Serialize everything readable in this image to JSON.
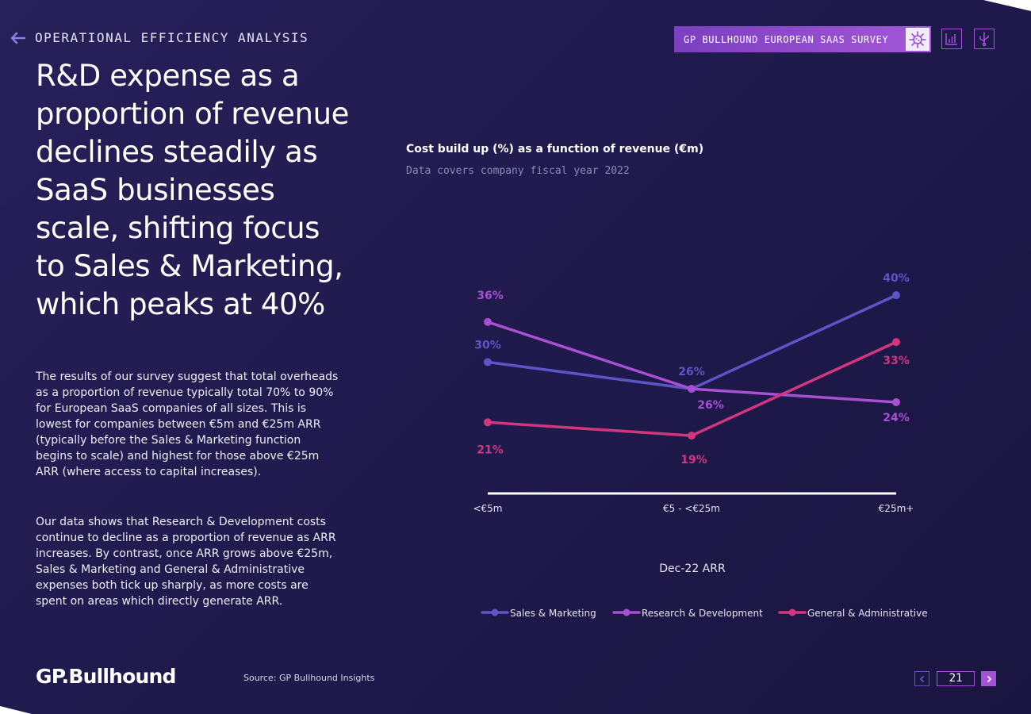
{
  "header": {
    "section_title": "OPERATIONAL EFFICIENCY ANALYSIS",
    "survey_label": "GP BULLHOUND EUROPEAN SAAS SURVEY"
  },
  "headline": "R&D expense as a proportion of revenue declines steadily as SaaS businesses scale, shifting focus to Sales & Marketing, which peaks at 40%",
  "body": {
    "paragraph1": "The results of our survey suggest that total overheads as a proportion of revenue typically total 70% to 90% for European SaaS companies of all sizes. This is lowest for companies between €5m and €25m ARR (typically before the Sales & Marketing function begins to scale) and highest for those above €25m ARR (where access to capital increases).",
    "paragraph2": "Our data shows that Research & Development costs continue to decline as a proportion of revenue as ARR increases. By contrast, once ARR grows above €25m, Sales & Marketing and General & Administrative expenses both tick up sharply, as more costs are spent on areas which directly generate ARR."
  },
  "chart_data": {
    "type": "line",
    "title": "Cost build up (%) as a function of revenue (€m)",
    "subtitle": "Data covers company fiscal year 2022",
    "categories": [
      "<€5m",
      "€5 - <€25m",
      "€25m+"
    ],
    "xlabel": "Dec-22 ARR",
    "ylabel": "",
    "ylim": [
      10,
      45
    ],
    "grid": false,
    "legend_position": "bottom",
    "series": [
      {
        "name": "Sales & Marketing",
        "values": [
          30,
          26,
          40
        ],
        "labels": [
          "30%",
          "26%",
          "40%"
        ],
        "color": "#5d54c8"
      },
      {
        "name": "Research & Development",
        "values": [
          36,
          26,
          24
        ],
        "labels": [
          "36%",
          "26%",
          "24%"
        ],
        "color": "#a94fd3"
      },
      {
        "name": "General & Administrative",
        "values": [
          21,
          19,
          33
        ],
        "labels": [
          "21%",
          "19%",
          "33%"
        ],
        "color": "#d0377f"
      }
    ]
  },
  "footer": {
    "logo_text": "GP.Bullhound",
    "source": "Source: GP Bullhound Insights",
    "page_number": "21"
  },
  "colors": {
    "background": "#211b4e",
    "accent_purple": "#a553d6",
    "sales_marketing": "#5d54c8",
    "research_development": "#a94fd3",
    "general_administrative": "#d0377f"
  },
  "icons": [
    "arrow-left-icon",
    "virus-icon",
    "bar-chart-icon",
    "usb-icon",
    "chevron-left-icon",
    "chevron-right-icon"
  ]
}
